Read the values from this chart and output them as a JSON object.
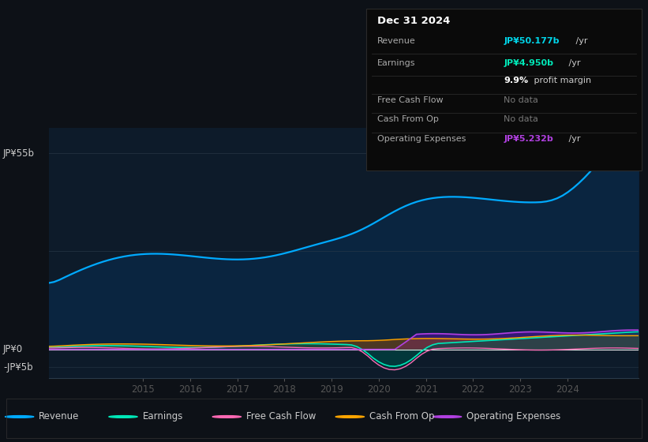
{
  "bg_color": "#0d1117",
  "plot_bg_color": "#0d1b2a",
  "y_label_top": "JP¥55b",
  "y_label_zero": "JP¥0",
  "y_label_neg": "-JP¥5b",
  "x_labels": [
    "2015",
    "2016",
    "2017",
    "2018",
    "2019",
    "2020",
    "2021",
    "2022",
    "2023",
    "2024"
  ],
  "ylim_min": -8,
  "ylim_max": 62,
  "revenue_color": "#00aaff",
  "earnings_color": "#00e8b8",
  "fcf_color": "#ff69b4",
  "cashop_color": "#ffa500",
  "opex_color": "#b040e0",
  "info_date": "Dec 31 2024",
  "info_rows": [
    {
      "label": "Revenue",
      "value": "JP¥50.177b",
      "suffix": " /yr",
      "value_color": "#00d4e8",
      "nodata": false
    },
    {
      "label": "Earnings",
      "value": "JP¥4.950b",
      "suffix": " /yr",
      "value_color": "#00e8b8",
      "nodata": false
    },
    {
      "label": "",
      "value": "9.9%",
      "suffix": " profit margin",
      "value_color": "#ffffff",
      "nodata": false,
      "bold": true
    },
    {
      "label": "Free Cash Flow",
      "value": "No data",
      "suffix": "",
      "value_color": "#777777",
      "nodata": true
    },
    {
      "label": "Cash From Op",
      "value": "No data",
      "suffix": "",
      "value_color": "#777777",
      "nodata": true
    },
    {
      "label": "Operating Expenses",
      "value": "JP¥5.232b",
      "suffix": " /yr",
      "value_color": "#b040e0",
      "nodata": false
    }
  ],
  "legend": [
    {
      "label": "Revenue",
      "color": "#00aaff"
    },
    {
      "label": "Earnings",
      "color": "#00e8b8"
    },
    {
      "label": "Free Cash Flow",
      "color": "#ff69b4"
    },
    {
      "label": "Cash From Op",
      "color": "#ffa500"
    },
    {
      "label": "Operating Expenses",
      "color": "#b040e0"
    }
  ]
}
